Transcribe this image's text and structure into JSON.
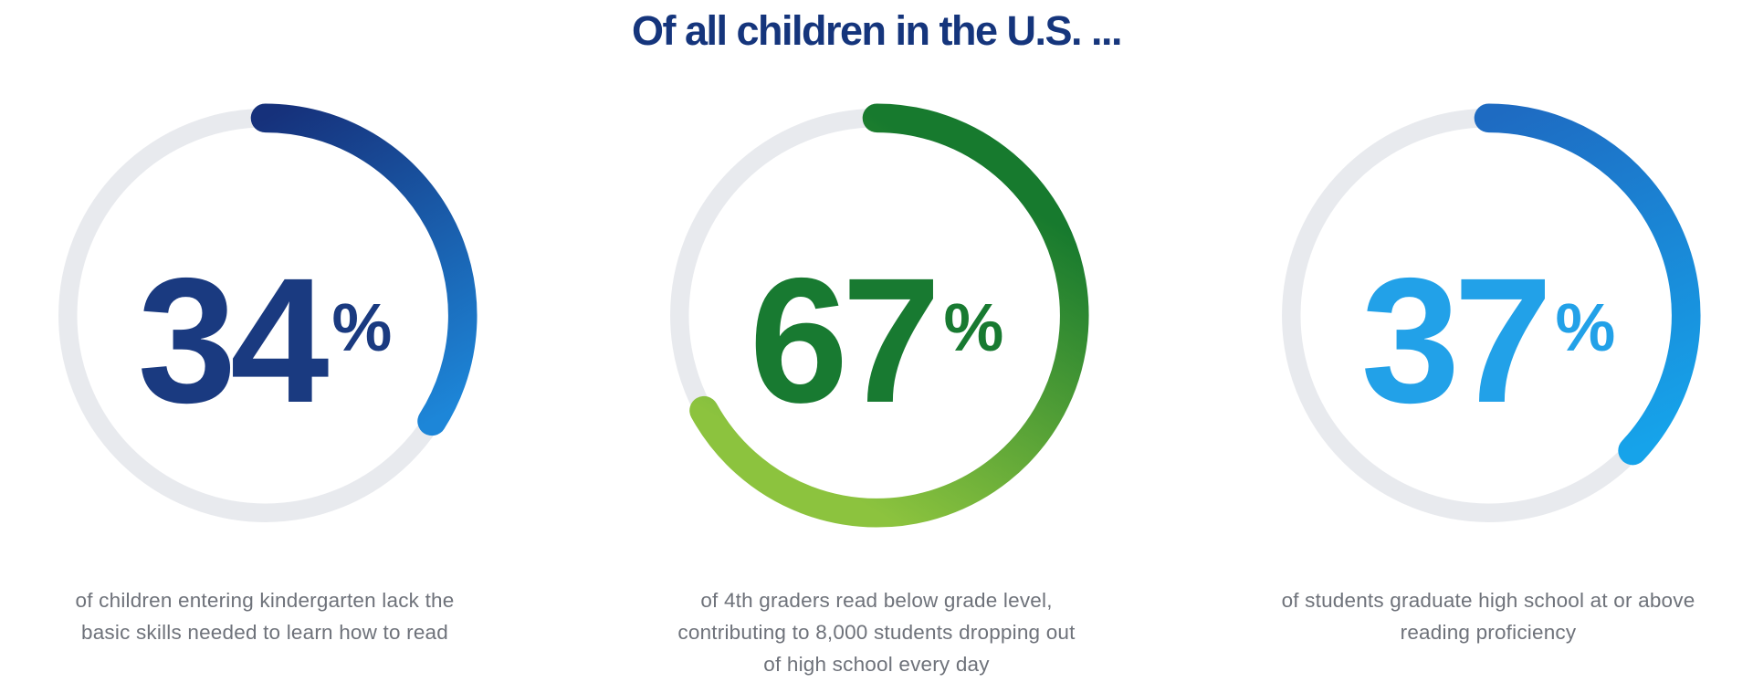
{
  "title": {
    "text": "Of all children in the U.S. ...",
    "color": "#15357c"
  },
  "caption_color": "#6e727a",
  "chart_data": [
    {
      "type": "donut",
      "value": 34,
      "unit": "%",
      "caption_lines": [
        "of children entering kindergarten lack the",
        "basic skills needed to learn how to read"
      ],
      "caption": "of children entering kindergarten lack the basic skills needed to learn how to read",
      "arc_start_angle_deg": 0,
      "arc_direction": "clockwise",
      "colors": {
        "number": "#1a3a80",
        "arc_start": "#16317b",
        "arc_end": "#1d86d8",
        "track": "#e8eaee"
      }
    },
    {
      "type": "donut",
      "value": 67,
      "unit": "%",
      "caption_lines": [
        "of 4th graders read below grade level,",
        "contributing to 8,000 students dropping out",
        "of high school every day"
      ],
      "caption": "of 4th graders read below grade level, contributing to 8,000 students dropping out of high school every day",
      "arc_start_angle_deg": 0,
      "arc_direction": "clockwise",
      "colors": {
        "number": "#187a31",
        "arc_start": "#177a2e",
        "arc_end": "#8cc33e",
        "track": "#e8eaee"
      }
    },
    {
      "type": "donut",
      "value": 37,
      "unit": "%",
      "caption_lines": [
        "of students graduate high school at or above",
        "reading proficiency"
      ],
      "caption": "of students graduate high school at or above reading proficiency",
      "arc_start_angle_deg": 0,
      "arc_direction": "clockwise",
      "colors": {
        "number": "#22a1e8",
        "arc_start": "#1e6bc2",
        "arc_end": "#16a3ea",
        "track": "#e8eaee"
      }
    }
  ]
}
